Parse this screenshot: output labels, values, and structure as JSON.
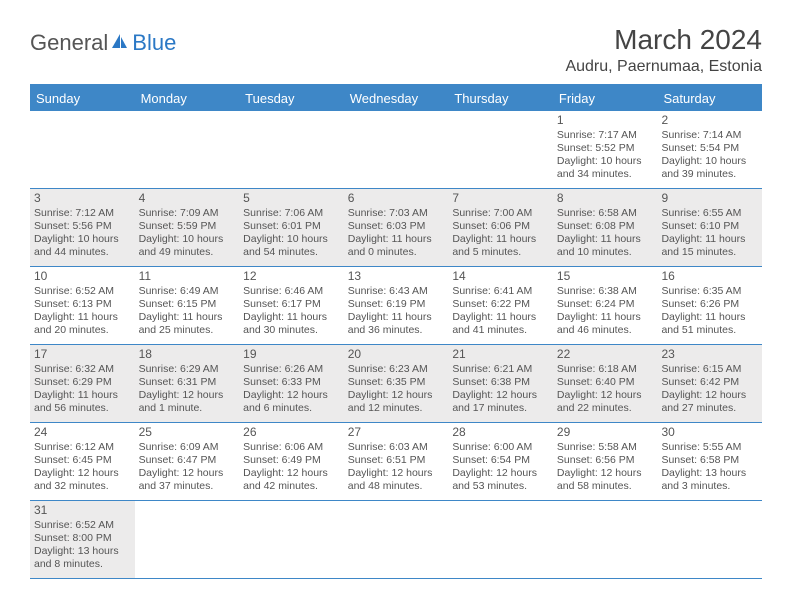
{
  "logo": {
    "text1": "General",
    "text2": "Blue"
  },
  "title": "March 2024",
  "location": "Audru, Paernumaa, Estonia",
  "colors": {
    "header_bg": "#3e87c7",
    "header_text": "#ffffff",
    "shaded_bg": "#ecebeb",
    "border": "#3e87c7",
    "text": "#555555"
  },
  "day_headers": [
    "Sunday",
    "Monday",
    "Tuesday",
    "Wednesday",
    "Thursday",
    "Friday",
    "Saturday"
  ],
  "weeks": [
    [
      {
        "empty": true
      },
      {
        "empty": true
      },
      {
        "empty": true
      },
      {
        "empty": true
      },
      {
        "empty": true
      },
      {
        "day": "1",
        "sunrise": "Sunrise: 7:17 AM",
        "sunset": "Sunset: 5:52 PM",
        "daylight": "Daylight: 10 hours and 34 minutes.",
        "shaded": false
      },
      {
        "day": "2",
        "sunrise": "Sunrise: 7:14 AM",
        "sunset": "Sunset: 5:54 PM",
        "daylight": "Daylight: 10 hours and 39 minutes.",
        "shaded": false
      }
    ],
    [
      {
        "day": "3",
        "sunrise": "Sunrise: 7:12 AM",
        "sunset": "Sunset: 5:56 PM",
        "daylight": "Daylight: 10 hours and 44 minutes.",
        "shaded": true
      },
      {
        "day": "4",
        "sunrise": "Sunrise: 7:09 AM",
        "sunset": "Sunset: 5:59 PM",
        "daylight": "Daylight: 10 hours and 49 minutes.",
        "shaded": true
      },
      {
        "day": "5",
        "sunrise": "Sunrise: 7:06 AM",
        "sunset": "Sunset: 6:01 PM",
        "daylight": "Daylight: 10 hours and 54 minutes.",
        "shaded": true
      },
      {
        "day": "6",
        "sunrise": "Sunrise: 7:03 AM",
        "sunset": "Sunset: 6:03 PM",
        "daylight": "Daylight: 11 hours and 0 minutes.",
        "shaded": true
      },
      {
        "day": "7",
        "sunrise": "Sunrise: 7:00 AM",
        "sunset": "Sunset: 6:06 PM",
        "daylight": "Daylight: 11 hours and 5 minutes.",
        "shaded": true
      },
      {
        "day": "8",
        "sunrise": "Sunrise: 6:58 AM",
        "sunset": "Sunset: 6:08 PM",
        "daylight": "Daylight: 11 hours and 10 minutes.",
        "shaded": true
      },
      {
        "day": "9",
        "sunrise": "Sunrise: 6:55 AM",
        "sunset": "Sunset: 6:10 PM",
        "daylight": "Daylight: 11 hours and 15 minutes.",
        "shaded": true
      }
    ],
    [
      {
        "day": "10",
        "sunrise": "Sunrise: 6:52 AM",
        "sunset": "Sunset: 6:13 PM",
        "daylight": "Daylight: 11 hours and 20 minutes.",
        "shaded": false
      },
      {
        "day": "11",
        "sunrise": "Sunrise: 6:49 AM",
        "sunset": "Sunset: 6:15 PM",
        "daylight": "Daylight: 11 hours and 25 minutes.",
        "shaded": false
      },
      {
        "day": "12",
        "sunrise": "Sunrise: 6:46 AM",
        "sunset": "Sunset: 6:17 PM",
        "daylight": "Daylight: 11 hours and 30 minutes.",
        "shaded": false
      },
      {
        "day": "13",
        "sunrise": "Sunrise: 6:43 AM",
        "sunset": "Sunset: 6:19 PM",
        "daylight": "Daylight: 11 hours and 36 minutes.",
        "shaded": false
      },
      {
        "day": "14",
        "sunrise": "Sunrise: 6:41 AM",
        "sunset": "Sunset: 6:22 PM",
        "daylight": "Daylight: 11 hours and 41 minutes.",
        "shaded": false
      },
      {
        "day": "15",
        "sunrise": "Sunrise: 6:38 AM",
        "sunset": "Sunset: 6:24 PM",
        "daylight": "Daylight: 11 hours and 46 minutes.",
        "shaded": false
      },
      {
        "day": "16",
        "sunrise": "Sunrise: 6:35 AM",
        "sunset": "Sunset: 6:26 PM",
        "daylight": "Daylight: 11 hours and 51 minutes.",
        "shaded": false
      }
    ],
    [
      {
        "day": "17",
        "sunrise": "Sunrise: 6:32 AM",
        "sunset": "Sunset: 6:29 PM",
        "daylight": "Daylight: 11 hours and 56 minutes.",
        "shaded": true
      },
      {
        "day": "18",
        "sunrise": "Sunrise: 6:29 AM",
        "sunset": "Sunset: 6:31 PM",
        "daylight": "Daylight: 12 hours and 1 minute.",
        "shaded": true
      },
      {
        "day": "19",
        "sunrise": "Sunrise: 6:26 AM",
        "sunset": "Sunset: 6:33 PM",
        "daylight": "Daylight: 12 hours and 6 minutes.",
        "shaded": true
      },
      {
        "day": "20",
        "sunrise": "Sunrise: 6:23 AM",
        "sunset": "Sunset: 6:35 PM",
        "daylight": "Daylight: 12 hours and 12 minutes.",
        "shaded": true
      },
      {
        "day": "21",
        "sunrise": "Sunrise: 6:21 AM",
        "sunset": "Sunset: 6:38 PM",
        "daylight": "Daylight: 12 hours and 17 minutes.",
        "shaded": true
      },
      {
        "day": "22",
        "sunrise": "Sunrise: 6:18 AM",
        "sunset": "Sunset: 6:40 PM",
        "daylight": "Daylight: 12 hours and 22 minutes.",
        "shaded": true
      },
      {
        "day": "23",
        "sunrise": "Sunrise: 6:15 AM",
        "sunset": "Sunset: 6:42 PM",
        "daylight": "Daylight: 12 hours and 27 minutes.",
        "shaded": true
      }
    ],
    [
      {
        "day": "24",
        "sunrise": "Sunrise: 6:12 AM",
        "sunset": "Sunset: 6:45 PM",
        "daylight": "Daylight: 12 hours and 32 minutes.",
        "shaded": false
      },
      {
        "day": "25",
        "sunrise": "Sunrise: 6:09 AM",
        "sunset": "Sunset: 6:47 PM",
        "daylight": "Daylight: 12 hours and 37 minutes.",
        "shaded": false
      },
      {
        "day": "26",
        "sunrise": "Sunrise: 6:06 AM",
        "sunset": "Sunset: 6:49 PM",
        "daylight": "Daylight: 12 hours and 42 minutes.",
        "shaded": false
      },
      {
        "day": "27",
        "sunrise": "Sunrise: 6:03 AM",
        "sunset": "Sunset: 6:51 PM",
        "daylight": "Daylight: 12 hours and 48 minutes.",
        "shaded": false
      },
      {
        "day": "28",
        "sunrise": "Sunrise: 6:00 AM",
        "sunset": "Sunset: 6:54 PM",
        "daylight": "Daylight: 12 hours and 53 minutes.",
        "shaded": false
      },
      {
        "day": "29",
        "sunrise": "Sunrise: 5:58 AM",
        "sunset": "Sunset: 6:56 PM",
        "daylight": "Daylight: 12 hours and 58 minutes.",
        "shaded": false
      },
      {
        "day": "30",
        "sunrise": "Sunrise: 5:55 AM",
        "sunset": "Sunset: 6:58 PM",
        "daylight": "Daylight: 13 hours and 3 minutes.",
        "shaded": false
      }
    ],
    [
      {
        "day": "31",
        "sunrise": "Sunrise: 6:52 AM",
        "sunset": "Sunset: 8:00 PM",
        "daylight": "Daylight: 13 hours and 8 minutes.",
        "shaded": true
      },
      {
        "empty": true
      },
      {
        "empty": true
      },
      {
        "empty": true
      },
      {
        "empty": true
      },
      {
        "empty": true
      },
      {
        "empty": true
      }
    ]
  ]
}
